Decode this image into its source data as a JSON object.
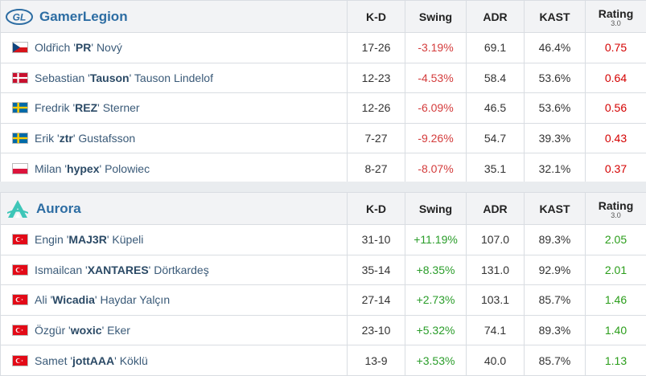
{
  "columns": {
    "kd": "K-D",
    "swing": "Swing",
    "adr": "ADR",
    "kast": "KAST",
    "rating": "Rating",
    "rating_sub": "3.0"
  },
  "teams": [
    {
      "name": "GamerLegion",
      "logo_text": "GL",
      "logo_icon": "gamerlegion-logo-icon",
      "players": [
        {
          "first": "Oldřich '",
          "nick": "PR",
          "last": "' Nový",
          "flag": "cz",
          "kd": "17-26",
          "swing": "-3.19%",
          "adr": "69.1",
          "kast": "46.4%",
          "rating": "0.75"
        },
        {
          "first": "Sebastian '",
          "nick": "Tauson",
          "last": "' Tauson Lindelof",
          "flag": "dk",
          "kd": "12-23",
          "swing": "-4.53%",
          "adr": "58.4",
          "kast": "53.6%",
          "rating": "0.64"
        },
        {
          "first": "Fredrik '",
          "nick": "REZ",
          "last": "' Sterner",
          "flag": "se",
          "kd": "12-26",
          "swing": "-6.09%",
          "adr": "46.5",
          "kast": "53.6%",
          "rating": "0.56"
        },
        {
          "first": "Erik '",
          "nick": "ztr",
          "last": "' Gustafsson",
          "flag": "se",
          "kd": "7-27",
          "swing": "-9.26%",
          "adr": "54.7",
          "kast": "39.3%",
          "rating": "0.43"
        },
        {
          "first": "Milan '",
          "nick": "hypex",
          "last": "' Polowiec",
          "flag": "pl",
          "kd": "8-27",
          "swing": "-8.07%",
          "adr": "35.1",
          "kast": "32.1%",
          "rating": "0.37"
        }
      ]
    },
    {
      "name": "Aurora",
      "logo_icon": "aurora-logo-icon",
      "players": [
        {
          "first": "Engin '",
          "nick": "MAJ3R",
          "last": "' Küpeli",
          "flag": "tr",
          "kd": "31-10",
          "swing": "+11.19%",
          "adr": "107.0",
          "kast": "89.3%",
          "rating": "2.05"
        },
        {
          "first": "Ismailcan '",
          "nick": "XANTARES",
          "last": "' Dörtkardeş",
          "flag": "tr",
          "kd": "35-14",
          "swing": "+8.35%",
          "adr": "131.0",
          "kast": "92.9%",
          "rating": "2.01"
        },
        {
          "first": "Ali '",
          "nick": "Wicadia",
          "last": "' Haydar Yalçın",
          "flag": "tr",
          "kd": "27-14",
          "swing": "+2.73%",
          "adr": "103.1",
          "kast": "85.7%",
          "rating": "1.46"
        },
        {
          "first": "Özgür '",
          "nick": "woxic",
          "last": "' Eker",
          "flag": "tr",
          "kd": "23-10",
          "swing": "+5.32%",
          "adr": "74.1",
          "kast": "89.3%",
          "rating": "1.40"
        },
        {
          "first": "Samet '",
          "nick": "jottAAA",
          "last": "' Köklü",
          "flag": "tr",
          "kd": "13-9",
          "swing": "+3.53%",
          "adr": "40.0",
          "kast": "85.7%",
          "rating": "1.13"
        }
      ]
    }
  ]
}
